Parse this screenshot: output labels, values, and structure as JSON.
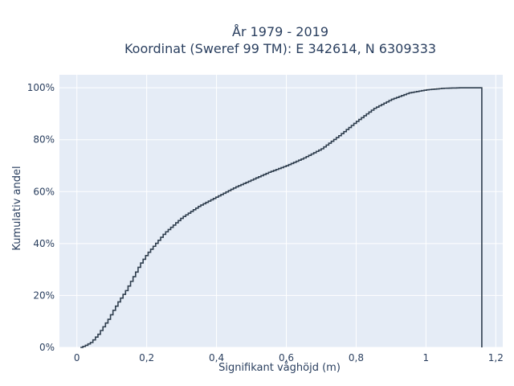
{
  "chart_data": {
    "type": "line",
    "subtype": "step-ecdf",
    "title_line1": "År 1979 - 2019",
    "title_line2": "Koordinat (Sweref 99 TM): E 342614, N 6309333",
    "xlabel": "Signifikant våghöjd (m)",
    "ylabel": "Kumulativ andel",
    "xlim": [
      -0.05,
      1.22
    ],
    "ylim": [
      0,
      1.05
    ],
    "x_ticks": [
      0,
      0.2,
      0.4,
      0.6,
      0.8,
      1.0,
      1.2
    ],
    "x_tick_labels": [
      "0",
      "0,2",
      "0,4",
      "0,6",
      "0,8",
      "1",
      "1,2"
    ],
    "y_ticks": [
      0,
      0.2,
      0.4,
      0.6,
      0.8,
      1.0
    ],
    "y_tick_labels": [
      "0%",
      "20%",
      "40%",
      "60%",
      "80%",
      "100%"
    ],
    "grid": true,
    "colors": {
      "plot_background": "#e5ecf6",
      "grid": "#ffffff",
      "line": "#2f3e4e",
      "text": "#2a3f5f"
    },
    "series": [
      {
        "x": [
          0.01,
          0.02,
          0.03,
          0.04,
          0.05,
          0.06,
          0.07,
          0.08,
          0.09,
          0.1,
          0.12,
          0.14,
          0.16,
          0.18,
          0.2,
          0.25,
          0.3,
          0.35,
          0.4,
          0.45,
          0.5,
          0.55,
          0.6,
          0.65,
          0.7,
          0.75,
          0.8,
          0.85,
          0.9,
          0.95,
          1.0,
          1.05,
          1.1,
          1.16
        ],
        "y": [
          0.0,
          0.005,
          0.012,
          0.02,
          0.035,
          0.05,
          0.07,
          0.09,
          0.11,
          0.135,
          0.18,
          0.22,
          0.27,
          0.32,
          0.36,
          0.44,
          0.5,
          0.545,
          0.58,
          0.615,
          0.645,
          0.675,
          0.7,
          0.73,
          0.765,
          0.815,
          0.87,
          0.92,
          0.955,
          0.98,
          0.992,
          0.998,
          1.0,
          1.0
        ]
      }
    ]
  }
}
